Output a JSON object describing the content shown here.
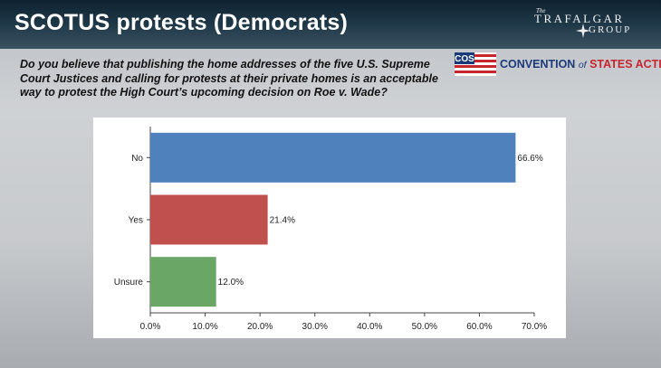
{
  "header": {
    "title": "SCOTUS protests (Democrats)",
    "brand_small": "The",
    "brand_line1": "TRAFALGAR",
    "brand_line2": "GROUP"
  },
  "question": {
    "text": "Do you believe that publishing the home addresses of the five U.S. Supreme Court Justices and calling for protests at their private homes is an acceptable way to protest the High Court’s upcoming decision on Roe v. Wade?"
  },
  "sponsor": {
    "flag_text": "COS",
    "name_part1": "CONVENTION",
    "name_of": "of",
    "name_part2": "STATES",
    "name_part3": "ACTION"
  },
  "colors": {
    "header_bg": "#1d3646",
    "no_bar": "#4f81bd",
    "yes_bar": "#c0504d",
    "unsure_bar": "#6aa766",
    "sponsor_blue": "#1b3a7a",
    "sponsor_red": "#c8262e"
  },
  "chart_data": {
    "type": "bar",
    "orientation": "horizontal",
    "title": "",
    "xlabel": "",
    "ylabel": "",
    "categories": [
      "No",
      "Yes",
      "Unsure"
    ],
    "values": [
      66.6,
      21.4,
      12.0
    ],
    "data_labels": [
      "66.6%",
      "21.4%",
      "12.0%"
    ],
    "colors": [
      "#4f81bd",
      "#c0504d",
      "#6aa766"
    ],
    "xlim": [
      0,
      70
    ],
    "x_ticks": [
      0,
      10,
      20,
      30,
      40,
      50,
      60,
      70
    ],
    "x_tick_labels": [
      "0.0%",
      "10.0%",
      "20.0%",
      "30.0%",
      "40.0%",
      "50.0%",
      "60.0%",
      "70.0%"
    ],
    "grid": false,
    "legend": "none"
  }
}
